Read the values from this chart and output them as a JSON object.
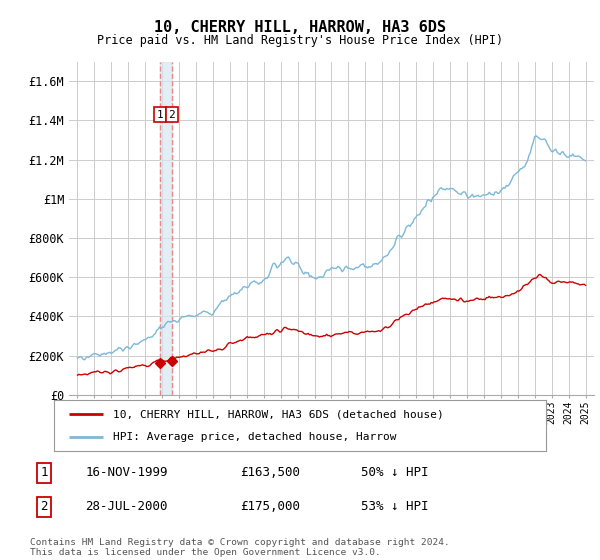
{
  "title": "10, CHERRY HILL, HARROW, HA3 6DS",
  "subtitle": "Price paid vs. HM Land Registry's House Price Index (HPI)",
  "ylim": [
    0,
    1700000
  ],
  "xlim": [
    1994.5,
    2025.5
  ],
  "yticks": [
    0,
    200000,
    400000,
    600000,
    800000,
    1000000,
    1200000,
    1400000,
    1600000
  ],
  "ytick_labels": [
    "£0",
    "£200K",
    "£400K",
    "£600K",
    "£800K",
    "£1M",
    "£1.2M",
    "£1.4M",
    "£1.6M"
  ],
  "hpi_color": "#7db8d8",
  "house_color": "#cc0000",
  "transaction_color": "#cc0000",
  "dashed_color": "#e88080",
  "shade_color": "#d8e8f0",
  "background_color": "#ffffff",
  "grid_color": "#cccccc",
  "transactions": [
    {
      "year": 1999.88,
      "price": 163500,
      "label": "1"
    },
    {
      "year": 2000.57,
      "price": 175000,
      "label": "2"
    }
  ],
  "legend_house": "10, CHERRY HILL, HARROW, HA3 6DS (detached house)",
  "legend_hpi": "HPI: Average price, detached house, Harrow",
  "footnote": "Contains HM Land Registry data © Crown copyright and database right 2024.\nThis data is licensed under the Open Government Licence v3.0.",
  "table_rows": [
    {
      "num": "1",
      "date": "16-NOV-1999",
      "price": "£163,500",
      "pct": "50% ↓ HPI"
    },
    {
      "num": "2",
      "date": "28-JUL-2000",
      "price": "£175,000",
      "pct": "53% ↓ HPI"
    }
  ]
}
